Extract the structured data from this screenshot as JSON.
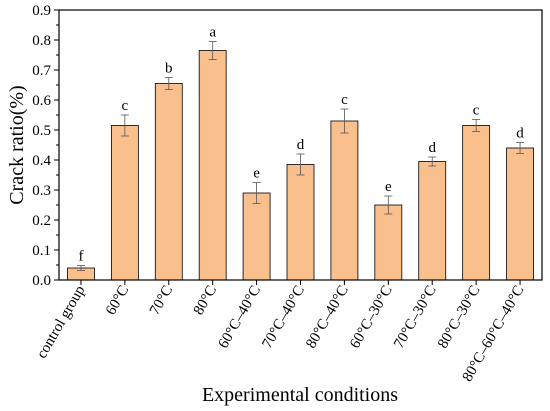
{
  "chart_data": {
    "type": "bar",
    "xlabel": "Experimental conditions",
    "ylabel": "Crack ratio(%)",
    "ylim": [
      0.0,
      0.9
    ],
    "yticks": [
      "0.0",
      "0.1",
      "0.2",
      "0.3",
      "0.4",
      "0.5",
      "0.6",
      "0.7",
      "0.8",
      "0.9"
    ],
    "grid": false,
    "bar_color": "#f9c08d",
    "bar_edge_color": "#000000",
    "categories": [
      "control group",
      "60°C",
      "70°C",
      "80°C",
      "60°C–40°C",
      "70°C–40°C",
      "80°C–40°C",
      "60°C–30°C",
      "70°C–30°C",
      "80°C–30°C",
      "80°C–60°C–40°C"
    ],
    "values": [
      0.04,
      0.515,
      0.655,
      0.765,
      0.29,
      0.385,
      0.53,
      0.25,
      0.395,
      0.515,
      0.44
    ],
    "errors": [
      0.008,
      0.035,
      0.02,
      0.03,
      0.035,
      0.035,
      0.04,
      0.03,
      0.015,
      0.02,
      0.018
    ],
    "significance": [
      "f",
      "c",
      "b",
      "a",
      "e",
      "d",
      "c",
      "e",
      "d",
      "c",
      "d"
    ]
  }
}
